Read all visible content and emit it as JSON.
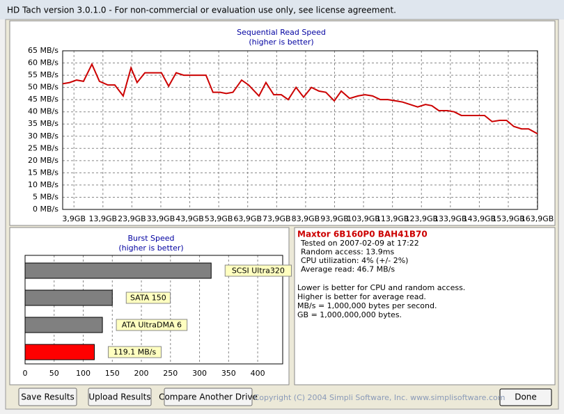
{
  "window": {
    "title": "HD Tach version 3.0.1.0  - For non-commercial or evaluation use only, see license agreement."
  },
  "chart_data": [
    {
      "type": "line",
      "title": "Sequential Read Speed",
      "subtitle": "(higher is better)",
      "x": [
        0,
        2.4,
        4.8,
        7.2,
        10.1,
        12.7,
        15.6,
        18.0,
        20.9,
        23.6,
        25.7,
        28.4,
        31.3,
        34.1,
        36.6,
        39.2,
        41.8,
        45.7,
        49.5,
        51.9,
        54.4,
        56.5,
        58.8,
        61.8,
        64.2,
        67.8,
        70.2,
        72.9,
        75.5,
        77.9,
        80.6,
        83.2,
        85.9,
        88.5,
        90.9,
        93.8,
        96.2,
        99.1,
        102.0,
        104.4,
        107.0,
        109.7,
        112.3,
        114.9,
        117.4,
        120.0,
        122.6,
        125.3,
        127.5,
        129.9,
        132.8,
        135.2,
        137.7,
        140.4,
        143.0,
        145.7,
        148.3,
        150.9,
        153.3,
        155.8,
        158.5,
        160.9,
        164.0
      ],
      "series": [
        {
          "color": "#cc0000",
          "values": [
            51.5,
            52,
            53,
            52.5,
            59.5,
            52.5,
            51,
            51,
            46.5,
            58,
            52,
            56,
            56,
            56,
            50.5,
            56,
            55,
            55,
            55,
            48,
            48,
            47.5,
            48,
            53,
            51,
            46.5,
            52,
            47,
            47,
            45,
            50,
            46,
            50,
            48.5,
            48,
            44.5,
            48.5,
            45.5,
            46.5,
            47,
            46.5,
            45,
            45,
            44.5,
            44,
            43,
            42,
            43,
            42.5,
            40.5,
            40.5,
            40,
            38.5,
            38.5,
            38.5,
            38.5,
            36,
            36.5,
            36.5,
            34,
            33,
            33,
            31
          ]
        }
      ],
      "xlim": [
        0,
        164
      ],
      "xticks": [
        {
          "value": 3.9,
          "label": "3,9GB"
        },
        {
          "value": 13.9,
          "label": "13,9GB"
        },
        {
          "value": 23.9,
          "label": "23,9GB"
        },
        {
          "value": 33.9,
          "label": "33,9GB"
        },
        {
          "value": 43.9,
          "label": "43,9GB"
        },
        {
          "value": 53.9,
          "label": "53,9GB"
        },
        {
          "value": 63.9,
          "label": "63,9GB"
        },
        {
          "value": 73.9,
          "label": "73,9GB"
        },
        {
          "value": 83.9,
          "label": "83,9GB"
        },
        {
          "value": 93.9,
          "label": "93,9GB"
        },
        {
          "value": 103.9,
          "label": "103,9GB"
        },
        {
          "value": 113.9,
          "label": "113,9GB"
        },
        {
          "value": 123.9,
          "label": "123,9GB"
        },
        {
          "value": 133.9,
          "label": "133,9GB"
        },
        {
          "value": 143.9,
          "label": "143,9GB"
        },
        {
          "value": 153.9,
          "label": "153,9GB"
        },
        {
          "value": 163.9,
          "label": "163,9GB"
        }
      ],
      "ylim": [
        0,
        65
      ],
      "yticks": [
        {
          "value": 0,
          "label": "0 MB/s"
        },
        {
          "value": 5,
          "label": "5 MB/s"
        },
        {
          "value": 10,
          "label": "10 MB/s"
        },
        {
          "value": 15,
          "label": "15 MB/s"
        },
        {
          "value": 20,
          "label": "20 MB/s"
        },
        {
          "value": 25,
          "label": "25 MB/s"
        },
        {
          "value": 30,
          "label": "30 MB/s"
        },
        {
          "value": 35,
          "label": "35 MB/s"
        },
        {
          "value": 40,
          "label": "40 MB/s"
        },
        {
          "value": 45,
          "label": "45 MB/s"
        },
        {
          "value": 50,
          "label": "50 MB/s"
        },
        {
          "value": 55,
          "label": "55 MB/s"
        },
        {
          "value": 60,
          "label": "60 MB/s"
        },
        {
          "value": 65,
          "label": "65 MB/s"
        }
      ],
      "grid": true
    },
    {
      "type": "hbar",
      "title": "Burst Speed",
      "subtitle": "(higher is better)",
      "categories": [
        "SCSI Ultra320",
        "SATA 150",
        "ATA UltraDMA 6",
        null
      ],
      "values": [
        320,
        150,
        133,
        119.1
      ],
      "value_labels": [
        null,
        null,
        null,
        "119.1 MB/s"
      ],
      "colors": [
        "#808080",
        "#808080",
        "#808080",
        "#ff0000"
      ],
      "xlim": [
        0,
        443
      ],
      "xticks": [
        0,
        50,
        100,
        150,
        200,
        250,
        300,
        350,
        400
      ],
      "grid": true
    }
  ],
  "info": {
    "drive": "Maxtor 6B160P0 BAH41B70",
    "stats": [
      "Tested on 2007-02-09 at 17:22",
      "Random access: 13.9ms",
      "CPU utilization: 4% (+/- 2%)",
      "Average read: 46.7 MB/s"
    ],
    "notes": [
      "Lower is better for CPU and random access.",
      "Higher is better for average read.",
      "MB/s = 1,000,000 bytes per second.",
      "GB = 1,000,000,000 bytes."
    ]
  },
  "buttons": [
    "Save Results",
    "Upload Results",
    "Compare Another Drive",
    "Done"
  ],
  "copyright": "Copyright (C) 2004 Simpli Software, Inc. www.simplisoftware.com"
}
